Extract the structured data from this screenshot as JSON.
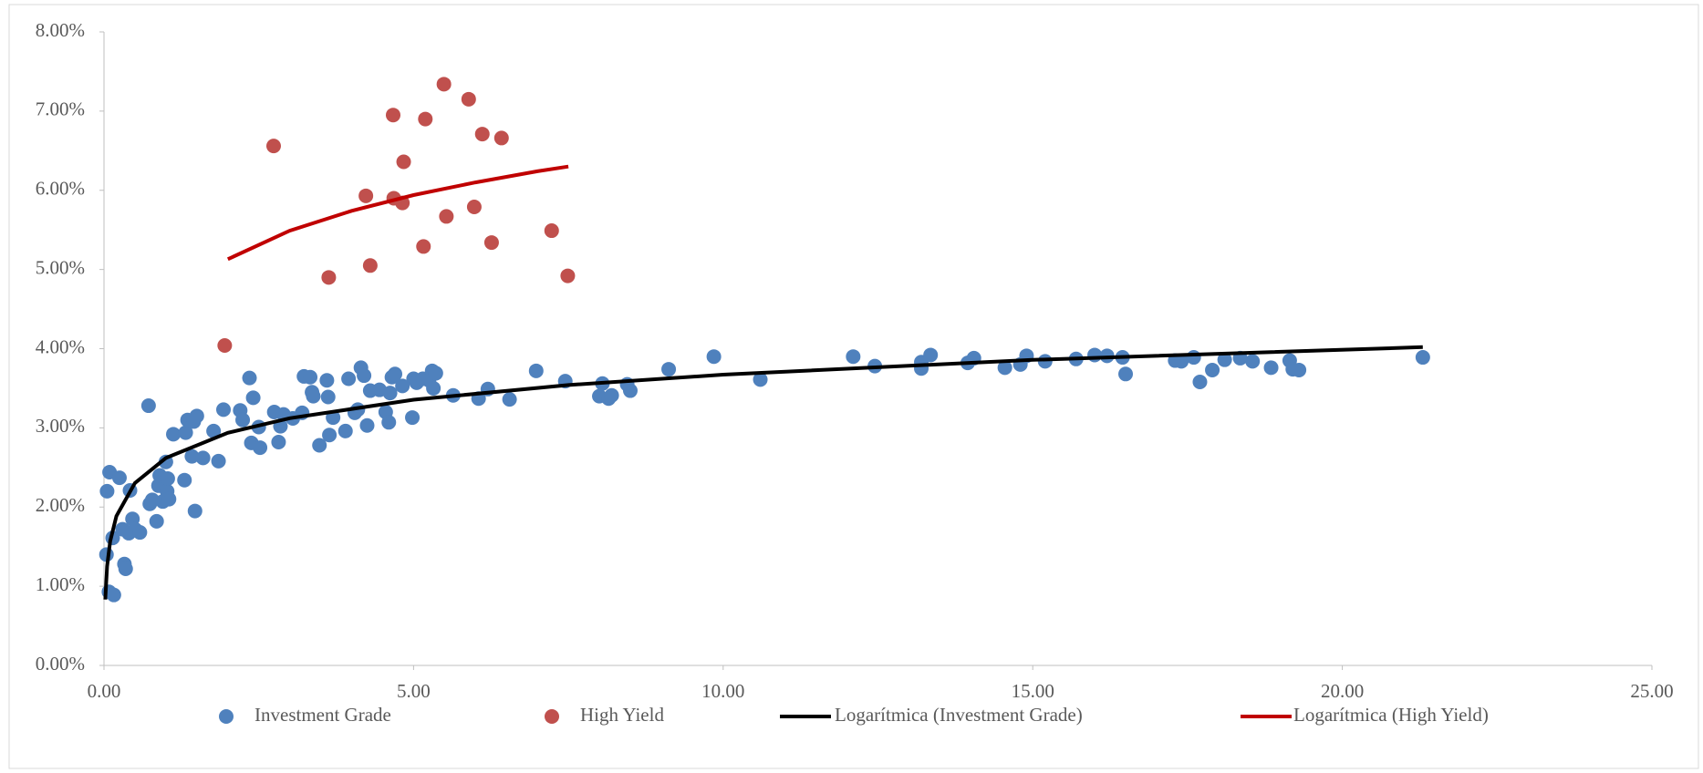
{
  "chart_data": {
    "type": "scatter",
    "xlim": [
      0,
      25
    ],
    "xticks": [
      {
        "value": 0,
        "label": "0.00"
      },
      {
        "value": 5,
        "label": "5.00"
      },
      {
        "value": 10,
        "label": "10.00"
      },
      {
        "value": 15,
        "label": "15.00"
      },
      {
        "value": 20,
        "label": "20.00"
      },
      {
        "value": 25,
        "label": "25.00"
      }
    ],
    "ylim": [
      0,
      8
    ],
    "yticks": [
      {
        "value": 0,
        "label": "0.00%"
      },
      {
        "value": 1,
        "label": "1.00%"
      },
      {
        "value": 2,
        "label": "2.00%"
      },
      {
        "value": 3,
        "label": "3.00%"
      },
      {
        "value": 4,
        "label": "4.00%"
      },
      {
        "value": 5,
        "label": "5.00%"
      },
      {
        "value": 6,
        "label": "6.00%"
      },
      {
        "value": 7,
        "label": "7.00%"
      },
      {
        "value": 8,
        "label": "8.00%"
      }
    ],
    "grid": false,
    "legend": "bottom",
    "series": [
      {
        "name": "Investment Grade",
        "type": "scatter",
        "color": "#4f81bd",
        "x": [
          0.04,
          0.05,
          0.08,
          0.09,
          0.14,
          0.16,
          0.25,
          0.3,
          0.33,
          0.35,
          0.4,
          0.42,
          0.46,
          0.5,
          0.58,
          0.72,
          0.74,
          0.78,
          0.85,
          0.88,
          0.9,
          0.95,
          1.0,
          1.02,
          1.03,
          1.05,
          1.12,
          1.3,
          1.32,
          1.35,
          1.42,
          1.45,
          1.47,
          1.5,
          1.6,
          1.77,
          1.85,
          1.93,
          2.2,
          2.24,
          2.35,
          2.38,
          2.41,
          2.5,
          2.52,
          2.75,
          2.82,
          2.85,
          2.9,
          3.05,
          3.2,
          3.23,
          3.33,
          3.36,
          3.38,
          3.48,
          3.6,
          3.62,
          3.64,
          3.7,
          3.9,
          3.95,
          4.05,
          4.1,
          4.15,
          4.2,
          4.25,
          4.3,
          4.45,
          4.55,
          4.6,
          4.62,
          4.65,
          4.7,
          4.82,
          4.98,
          5.0,
          5.05,
          5.15,
          5.25,
          5.3,
          5.32,
          5.36,
          5.64,
          6.05,
          6.2,
          6.55,
          6.98,
          7.45,
          8.0,
          8.05,
          8.15,
          8.2,
          8.45,
          8.5,
          9.12,
          9.85,
          10.6,
          12.1,
          12.45,
          13.2,
          13.2,
          13.35,
          13.95,
          14.05,
          14.55,
          14.8,
          14.9,
          15.2,
          15.7,
          16.0,
          16.2,
          16.45,
          16.5,
          17.3,
          17.4,
          17.6,
          17.7,
          17.9,
          18.1,
          18.35,
          18.55,
          18.85,
          19.15,
          19.2,
          19.3,
          21.3
        ],
        "values": [
          1.4,
          2.2,
          0.93,
          2.44,
          1.61,
          0.89,
          2.37,
          1.72,
          1.28,
          1.22,
          1.67,
          2.21,
          1.85,
          1.72,
          1.68,
          3.28,
          2.04,
          2.09,
          1.82,
          2.27,
          2.4,
          2.07,
          2.57,
          2.2,
          2.36,
          2.1,
          2.92,
          2.34,
          2.94,
          3.1,
          2.64,
          3.08,
          1.95,
          3.15,
          2.62,
          2.96,
          2.58,
          3.23,
          3.22,
          3.1,
          3.63,
          2.81,
          3.38,
          3.01,
          2.75,
          3.2,
          2.82,
          3.02,
          3.17,
          3.12,
          3.19,
          3.65,
          3.64,
          3.45,
          3.4,
          2.78,
          3.6,
          3.39,
          2.91,
          3.13,
          2.96,
          3.62,
          3.19,
          3.23,
          3.76,
          3.66,
          3.03,
          3.47,
          3.48,
          3.2,
          3.07,
          3.44,
          3.64,
          3.68,
          3.53,
          3.13,
          3.62,
          3.57,
          3.62,
          3.6,
          3.72,
          3.5,
          3.69,
          3.41,
          3.37,
          3.49,
          3.36,
          3.72,
          3.59,
          3.4,
          3.56,
          3.37,
          3.41,
          3.55,
          3.47,
          3.74,
          3.9,
          3.61,
          3.9,
          3.78,
          3.75,
          3.83,
          3.92,
          3.82,
          3.88,
          3.76,
          3.8,
          3.91,
          3.84,
          3.87,
          3.92,
          3.91,
          3.89,
          3.68,
          3.85,
          3.84,
          3.89,
          3.58,
          3.73,
          3.86,
          3.88,
          3.84,
          3.76,
          3.85,
          3.74,
          3.73,
          3.89
        ]
      },
      {
        "name": "High Yield",
        "type": "scatter",
        "color": "#c0504d",
        "x": [
          1.95,
          2.74,
          3.63,
          4.23,
          4.3,
          4.67,
          4.68,
          4.82,
          4.84,
          5.16,
          5.19,
          5.49,
          5.53,
          5.89,
          5.98,
          6.11,
          6.26,
          6.42,
          7.23,
          7.49
        ],
        "values": [
          4.04,
          6.56,
          4.9,
          5.93,
          5.05,
          6.95,
          5.9,
          5.84,
          6.36,
          5.29,
          6.9,
          7.34,
          5.67,
          7.15,
          5.79,
          6.71,
          5.34,
          6.66,
          5.49,
          4.92
        ]
      },
      {
        "name": "Logarítmica (Investment Grade)",
        "type": "line",
        "color": "#000000",
        "x": [
          0.02,
          0.05,
          0.1,
          0.2,
          0.5,
          1,
          2,
          3,
          5,
          7.5,
          10,
          15,
          21.3
        ],
        "values": [
          0.832,
          1.251,
          1.568,
          1.885,
          2.303,
          2.62,
          2.937,
          3.122,
          3.355,
          3.541,
          3.672,
          3.858,
          4.02
        ]
      },
      {
        "name": "Logarítmica (High Yield)",
        "type": "line",
        "color": "#c00000",
        "x": [
          2,
          3,
          4,
          5,
          6,
          7,
          7.5
        ],
        "values": [
          5.13,
          5.49,
          5.74,
          5.94,
          6.1,
          6.24,
          6.3
        ]
      }
    ]
  }
}
